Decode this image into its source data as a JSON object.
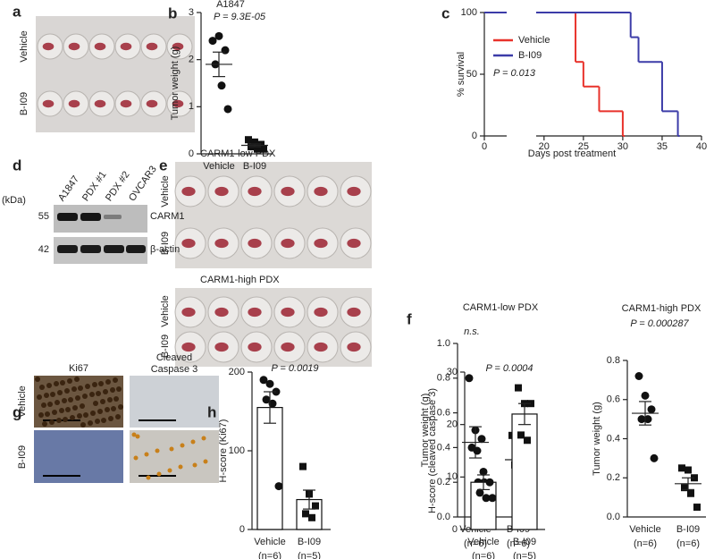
{
  "figure": {
    "panel_letters": [
      "a",
      "b",
      "c",
      "d",
      "e",
      "f",
      "g",
      "h"
    ],
    "a": {
      "row_labels": [
        "Vehicle",
        "B-I09"
      ]
    },
    "d": {
      "unit_label": "(kDa)",
      "lanes": [
        "A1847",
        "PDX #1",
        "PDX #2",
        "OVCAR3"
      ],
      "markers": [
        55,
        42
      ],
      "proteins": [
        "CARM1",
        "β-actin"
      ]
    },
    "e": {
      "groups": [
        {
          "title": "CARM1-low PDX",
          "row_labels": [
            "Vehicle",
            "B-I09"
          ]
        },
        {
          "title": "CARM1-high PDX",
          "row_labels": [
            "Vehicle",
            "B-I09"
          ]
        }
      ]
    },
    "g": {
      "columns": [
        [
          "Ki67"
        ],
        [
          "Cleaved",
          "Caspase 3"
        ]
      ],
      "row_labels": [
        "Vehicle",
        "B-I09"
      ]
    }
  },
  "chart_data": [
    {
      "type": "dotplot",
      "title": "A1847",
      "annotation": "P = 9.3E-05",
      "ylabel": "Tumor weight (g)",
      "categories": [
        "Vehicle",
        "B-I09"
      ],
      "markers": [
        "circle",
        "square"
      ],
      "points": [
        [
          2.4,
          2.5,
          2.2,
          1.9,
          1.45,
          0.95
        ],
        [
          0.3,
          0.25,
          0.2,
          0.15,
          0.1,
          0.1
        ]
      ],
      "values": [
        1.9,
        0.18
      ],
      "sem": [
        0.26,
        0.03
      ],
      "ylim": [
        0,
        3
      ],
      "yticks": [
        0,
        1,
        2,
        3
      ]
    },
    {
      "type": "survival",
      "annotation": "P = 0.013",
      "xlabel": "Days post treatment",
      "ylabel": "% survival",
      "xlim": [
        0,
        40
      ],
      "xbreak": [
        2,
        19
      ],
      "xticks": [
        0,
        20,
        25,
        30,
        35,
        40
      ],
      "ylim": [
        0,
        100
      ],
      "yticks": [
        0,
        50,
        100
      ],
      "series": [
        {
          "name": "Vehicle",
          "color": "#e8322b",
          "x": [
            0,
            24,
            25,
            27,
            30
          ],
          "values": [
            100,
            60,
            40,
            20,
            0
          ]
        },
        {
          "name": "B-I09",
          "color": "#3c3ca8",
          "x": [
            0,
            31,
            32,
            35,
            37
          ],
          "values": [
            100,
            80,
            60,
            20,
            0
          ]
        }
      ]
    },
    {
      "type": "dotplot",
      "title": "CARM1-low PDX",
      "annotation": "n.s.",
      "ylabel": "Tumor weight (g)",
      "categories": [
        "Vehicle",
        "B-I09"
      ],
      "category_notes": [
        "(n=6)",
        "(n=6)"
      ],
      "markers": [
        "circle",
        "square"
      ],
      "points": [
        [
          0.8,
          0.5,
          0.45,
          0.4,
          0.2,
          0.2
        ],
        [
          0.47,
          0.38,
          0.35,
          0.3,
          0.3,
          0.2
        ]
      ],
      "values": [
        0.43,
        0.33
      ],
      "sem": [
        0.09,
        0.04
      ],
      "ylim": [
        0,
        1
      ],
      "yticks": [
        {
          "value": 0,
          "label": "0.0"
        },
        0.2,
        0.4,
        0.6,
        0.8,
        {
          "value": 1,
          "label": "1.0"
        }
      ]
    },
    {
      "type": "dotplot",
      "title": "CARM1-high PDX",
      "annotation": "P = 0.000287",
      "ylabel": "Tumor weight (g)",
      "categories": [
        "Vehicle",
        "B-I09"
      ],
      "category_notes": [
        "(n=6)",
        "(n=6)"
      ],
      "markers": [
        "circle",
        "square"
      ],
      "points": [
        [
          0.72,
          0.62,
          0.55,
          0.5,
          0.5,
          0.3
        ],
        [
          0.25,
          0.24,
          0.2,
          0.15,
          0.12,
          0.05
        ]
      ],
      "values": [
        0.53,
        0.17
      ],
      "sem": [
        0.06,
        0.03
      ],
      "ylim": [
        0,
        0.8
      ],
      "yticks": [
        {
          "value": 0,
          "label": "0.0"
        },
        0.2,
        0.4,
        0.6,
        0.8
      ]
    },
    {
      "type": "bar",
      "annotation": "P = 0.0019",
      "ylabel": "H-score (Ki67)",
      "categories": [
        "Vehicle",
        "B-I09"
      ],
      "category_notes": [
        "(n=6)",
        "(n=5)"
      ],
      "markers": [
        "circle",
        "square"
      ],
      "points": [
        [
          190,
          185,
          175,
          165,
          160,
          55
        ],
        [
          80,
          45,
          30,
          20,
          15
        ]
      ],
      "values": [
        155,
        38
      ],
      "sem": [
        20,
        12
      ],
      "ylim": [
        0,
        200
      ],
      "yticks": [
        0,
        100,
        200
      ]
    },
    {
      "type": "bar",
      "annotation": "P = 0.0004",
      "ylabel": "H-score (cleaved caspase 3)",
      "categories": [
        "Vehicle",
        "B-I09"
      ],
      "category_notes": [
        "(n=6)",
        "(n=5)"
      ],
      "markers": [
        "circle",
        "square"
      ],
      "points": [
        [
          15,
          11,
          9,
          7,
          6,
          6
        ],
        [
          27,
          24,
          24,
          18,
          17
        ]
      ],
      "values": [
        9,
        22
      ],
      "sem": [
        1.4,
        2
      ],
      "ylim": [
        0,
        30
      ],
      "yticks": [
        0,
        10,
        20,
        30
      ]
    }
  ]
}
